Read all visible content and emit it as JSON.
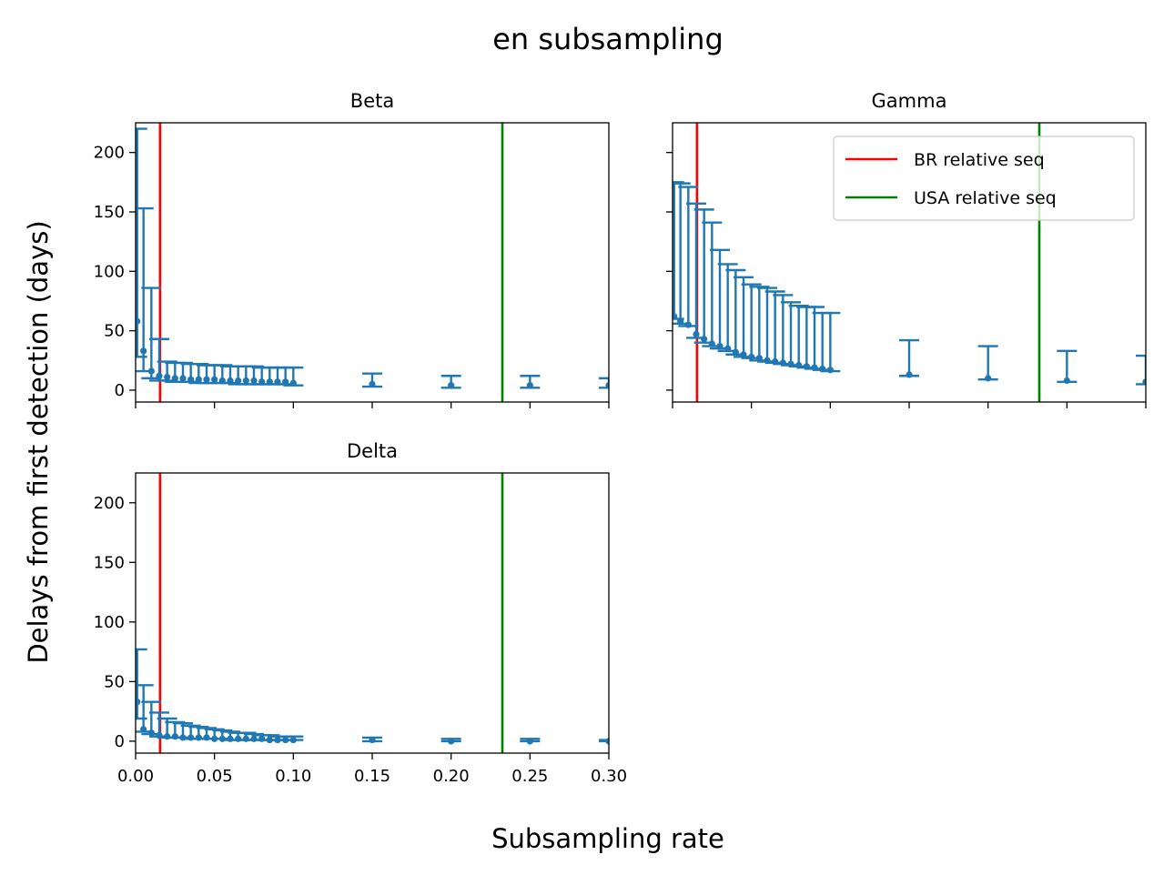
{
  "chart_data": {
    "type": "scatter",
    "title": "en subsampling",
    "xlabel": "Subsampling rate",
    "ylabel": "Delays from first detection (days)",
    "xlim": [
      0,
      0.3
    ],
    "ylim": [
      -10,
      225
    ],
    "xticks": [
      "0.00",
      "0.05",
      "0.10",
      "0.15",
      "0.20",
      "0.25",
      "0.30"
    ],
    "yticks": [
      "0",
      "50",
      "100",
      "150",
      "200"
    ],
    "reference_lines": [
      {
        "name": "BR relative seq",
        "x": 0.0155,
        "color": "#ff0000"
      },
      {
        "name": "USA relative seq",
        "x": 0.2325,
        "color": "#008000"
      }
    ],
    "legend": {
      "placement": "upper-right",
      "panel": "Gamma"
    },
    "series_color": "#1f77b4",
    "panels": [
      {
        "name": "Beta",
        "x": [
          0.001,
          0.005,
          0.01,
          0.015,
          0.02,
          0.025,
          0.03,
          0.035,
          0.04,
          0.045,
          0.05,
          0.055,
          0.06,
          0.065,
          0.07,
          0.075,
          0.08,
          0.085,
          0.09,
          0.095,
          0.1,
          0.15,
          0.2,
          0.25,
          0.3
        ],
        "y": [
          58,
          33,
          16,
          12,
          11,
          10,
          10,
          9,
          9,
          9,
          9,
          8,
          8,
          8,
          8,
          8,
          7,
          7,
          7,
          7,
          6,
          5,
          4,
          4,
          4
        ],
        "ylow": [
          28,
          16,
          10,
          8,
          8,
          7,
          7,
          7,
          6,
          6,
          6,
          6,
          6,
          5,
          5,
          5,
          5,
          5,
          5,
          5,
          4,
          3,
          2,
          2,
          2
        ],
        "yhigh": [
          220,
          153,
          86,
          43,
          24,
          23,
          23,
          22,
          22,
          21,
          21,
          21,
          20,
          20,
          20,
          20,
          19,
          19,
          19,
          19,
          19,
          14,
          12,
          12,
          10
        ]
      },
      {
        "name": "Gamma",
        "x": [
          0.001,
          0.005,
          0.01,
          0.015,
          0.02,
          0.025,
          0.03,
          0.035,
          0.04,
          0.045,
          0.05,
          0.055,
          0.06,
          0.065,
          0.07,
          0.075,
          0.08,
          0.085,
          0.09,
          0.095,
          0.1,
          0.15,
          0.2,
          0.25,
          0.3
        ],
        "y": [
          62,
          58,
          55,
          47,
          43,
          39,
          37,
          35,
          32,
          30,
          28,
          27,
          25,
          24,
          23,
          22,
          21,
          20,
          19,
          18,
          17,
          13,
          10,
          8,
          7
        ],
        "ylow": [
          60,
          56,
          54,
          44,
          40,
          37,
          35,
          33,
          30,
          28,
          27,
          25,
          24,
          23,
          22,
          21,
          20,
          19,
          18,
          17,
          16,
          12,
          9,
          7,
          5
        ],
        "yhigh": [
          175,
          174,
          171,
          157,
          152,
          141,
          118,
          106,
          101,
          95,
          89,
          87,
          86,
          83,
          80,
          74,
          71,
          70,
          70,
          65,
          65,
          42,
          37,
          33,
          29
        ]
      },
      {
        "name": "Delta",
        "x": [
          0.001,
          0.005,
          0.01,
          0.015,
          0.02,
          0.025,
          0.03,
          0.035,
          0.04,
          0.045,
          0.05,
          0.055,
          0.06,
          0.065,
          0.07,
          0.075,
          0.08,
          0.085,
          0.09,
          0.095,
          0.1,
          0.15,
          0.2,
          0.25,
          0.3
        ],
        "y": [
          33,
          10,
          7,
          5,
          4,
          4,
          3,
          3,
          3,
          3,
          2,
          2,
          2,
          2,
          2,
          2,
          2,
          1,
          1,
          1,
          1,
          1,
          0,
          0,
          0
        ],
        "ylow": [
          19,
          8,
          6,
          4,
          3,
          3,
          3,
          2,
          2,
          2,
          2,
          2,
          1,
          1,
          1,
          1,
          1,
          1,
          1,
          1,
          1,
          0,
          0,
          0,
          0
        ],
        "yhigh": [
          77,
          47,
          33,
          24,
          19,
          16,
          15,
          13,
          12,
          11,
          10,
          9,
          8,
          7,
          7,
          6,
          5,
          5,
          4,
          4,
          4,
          3,
          2,
          2,
          1
        ]
      }
    ]
  }
}
